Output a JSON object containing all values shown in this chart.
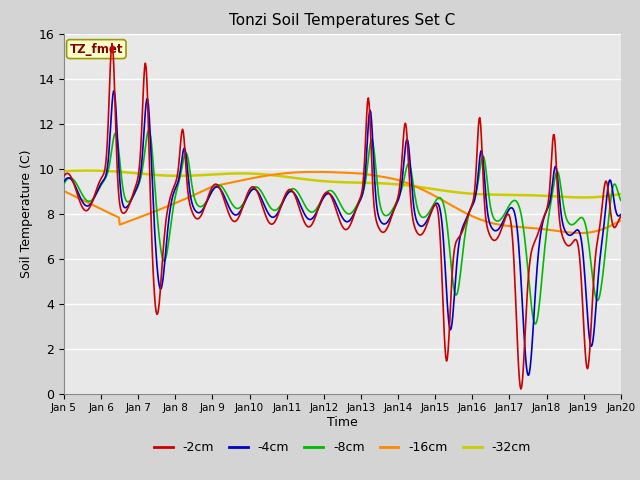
{
  "title": "Tonzi Soil Temperatures Set C",
  "xlabel": "Time",
  "ylabel": "Soil Temperature (C)",
  "ylim": [
    0,
    16
  ],
  "yticks": [
    0,
    2,
    4,
    6,
    8,
    10,
    12,
    14,
    16
  ],
  "xtick_labels": [
    "Jan 5",
    "Jan 6",
    "Jan 7",
    "Jan 8",
    "Jan 9",
    "Jan 10",
    "Jan 11",
    "Jan 12",
    "Jan 13",
    "Jan 14",
    "Jan 15",
    "Jan 16",
    "Jan 17",
    "Jan 18",
    "Jan 19",
    "Jan 20"
  ],
  "series_colors": {
    "-2cm": "#cc0000",
    "-4cm": "#0000cc",
    "-8cm": "#00bb00",
    "-16cm": "#ff8800",
    "-32cm": "#cccc00"
  },
  "fig_facecolor": "#d4d4d4",
  "ax_facecolor": "#e8e8e8"
}
